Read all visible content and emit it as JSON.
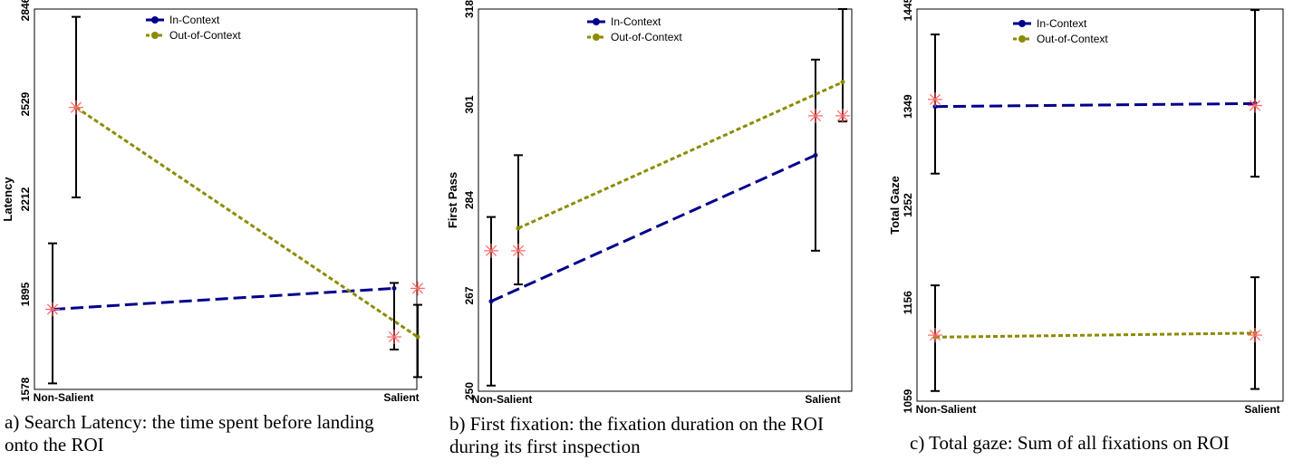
{
  "chart_data": [
    {
      "type": "line",
      "ylabel": "Latency",
      "categories": [
        "Non-Salient",
        "Salient"
      ],
      "y_ticks": [
        1578,
        1895,
        2212,
        2529,
        2846
      ],
      "ylim": [
        1578,
        2846
      ],
      "legend_position": "top-center",
      "series": [
        {
          "name": "In-Context",
          "color": "#00008b",
          "dash": "long-dash",
          "values": [
            1845,
            1915
          ],
          "err_low": [
            1598,
            1711
          ],
          "err_high": [
            2065,
            1933
          ]
        },
        {
          "name": "Out-of-Context",
          "color": "#8b8b00",
          "dash": "short-dash",
          "values": [
            2518,
            1753
          ],
          "err_low": [
            2218,
            1619
          ],
          "err_high": [
            2820,
            1860
          ]
        }
      ],
      "reference_marks": {
        "color": "#ff6666",
        "values": [
          [
            1845,
            2518
          ],
          [
            1753,
            1915
          ]
        ]
      },
      "caption": "a) Search Latency: the time spent before landing onto the ROI"
    },
    {
      "type": "line",
      "ylabel": "First Pass",
      "categories": [
        "Non-Salient",
        "Salient"
      ],
      "y_ticks": [
        250,
        267,
        284,
        301,
        318
      ],
      "ylim": [
        250,
        318
      ],
      "legend_position": "top-center",
      "series": [
        {
          "name": "In-Context",
          "color": "#00008b",
          "dash": "long-dash",
          "values": [
            266,
            292
          ],
          "err_low": [
            251,
            275
          ],
          "err_high": [
            281,
            309
          ]
        },
        {
          "name": "Out-of-Context",
          "color": "#8b8b00",
          "dash": "short-dash",
          "values": [
            279,
            305
          ],
          "err_low": [
            269,
            298
          ],
          "err_high": [
            292,
            318
          ]
        }
      ],
      "reference_marks": {
        "color": "#ff6666",
        "values": [
          [
            275,
            275
          ],
          [
            299,
            299
          ]
        ]
      },
      "caption": "b) First fixation: the fixation duration on the ROI during its first inspection"
    },
    {
      "type": "line",
      "ylabel": "Total Gaze",
      "categories": [
        "Non-Salient",
        "Salient"
      ],
      "y_ticks": [
        1059,
        1156,
        1252,
        1349,
        1445
      ],
      "ylim": [
        1059,
        1445
      ],
      "legend_position": "top-center",
      "series": [
        {
          "name": "In-Context",
          "color": "#00008b",
          "dash": "long-dash",
          "values": [
            1349,
            1352
          ],
          "err_low": [
            1283,
            1280
          ],
          "err_high": [
            1420,
            1444
          ]
        },
        {
          "name": "Out-of-Context",
          "color": "#8b8b00",
          "dash": "short-dash",
          "values": [
            1122,
            1126
          ],
          "err_low": [
            1069,
            1071
          ],
          "err_high": [
            1173,
            1181
          ]
        }
      ],
      "reference_marks": {
        "color": "#ff6666",
        "values": [
          [
            1356,
            1124
          ],
          [
            1124,
            1350
          ]
        ]
      },
      "caption": "c) Total gaze: Sum of all fixations on ROI"
    }
  ]
}
